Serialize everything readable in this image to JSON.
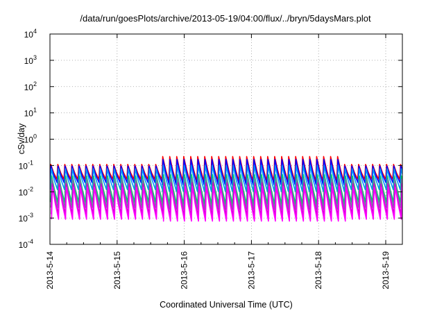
{
  "chart_data": {
    "type": "line",
    "title": "/data/run/goesPlots/archive/2013-05-19/04:00/flux/../bryn/5daysMars.plot",
    "xlabel": "Coordinated Universal Time (UTC)",
    "ylabel": "cSv/day",
    "yscale": "log",
    "ylim": [
      0.0001,
      10000
    ],
    "xlim": [
      "2013-05-14 00:00",
      "2013-05-19 04:00"
    ],
    "grid": true,
    "legend": "none",
    "y_ticks": [
      {
        "base": "10",
        "exp": "-4",
        "value": 0.0001
      },
      {
        "base": "10",
        "exp": "-3",
        "value": 0.001
      },
      {
        "base": "10",
        "exp": "-2",
        "value": 0.01
      },
      {
        "base": "10",
        "exp": "-1",
        "value": 0.1
      },
      {
        "base": "10",
        "exp": "0",
        "value": 1
      },
      {
        "base": "10",
        "exp": "1",
        "value": 10
      },
      {
        "base": "10",
        "exp": "2",
        "value": 100
      },
      {
        "base": "10",
        "exp": "3",
        "value": 1000
      },
      {
        "base": "10",
        "exp": "4",
        "value": 10000
      }
    ],
    "x_ticks": [
      {
        "label": "2013-5-14",
        "day": 0
      },
      {
        "label": "2013-5-15",
        "day": 1
      },
      {
        "label": "2013-5-16",
        "day": 2
      },
      {
        "label": "2013-5-17",
        "day": 3
      },
      {
        "label": "2013-5-18",
        "day": 4
      },
      {
        "label": "2013-5-19",
        "day": 5
      }
    ],
    "sawtooth_period_hours": 2.5,
    "series": [
      {
        "color": "#ff0000",
        "peak": 0.11,
        "trough": 0.03,
        "peak_enhanced": 0.22
      },
      {
        "color": "#0000ff",
        "peak": 0.095,
        "trough": 0.022,
        "peak_enhanced": 0.17
      },
      {
        "color": "#0090ff",
        "peak": 0.075,
        "trough": 0.012,
        "peak_enhanced": 0.1
      },
      {
        "color": "#00cc66",
        "peak": 0.04,
        "trough": 0.004,
        "peak_enhanced": 0.045
      },
      {
        "color": "#7777aa",
        "peak": 0.03,
        "trough": 0.0025,
        "peak_enhanced": 0.032
      },
      {
        "color": "#cc00cc",
        "peak": 0.02,
        "trough": 0.0014,
        "peak_enhanced": 0.022
      },
      {
        "color": "#ff00ff",
        "peak": 0.015,
        "trough": 0.0009,
        "peak_enhanced": 0.016
      }
    ],
    "enhanced_interval_days": [
      1.65,
      4.3
    ]
  }
}
